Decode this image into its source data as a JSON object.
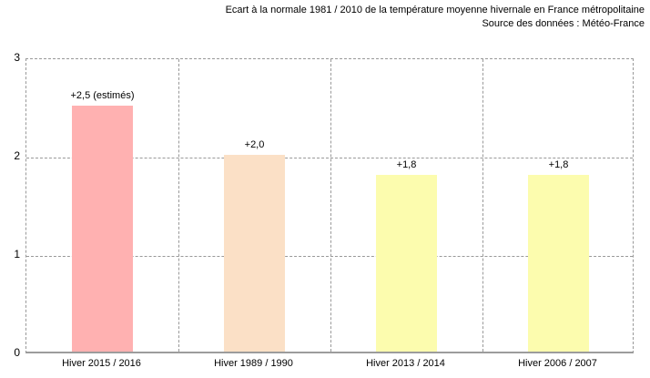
{
  "chart_data": {
    "type": "bar",
    "title": "Ecart à la normale 1981 / 2010 de la température moyenne hivernale en France métropolitaine",
    "subtitle": "Source des données : Météo-France",
    "categories": [
      "Hiver 2015 / 2016",
      "Hiver 1989 / 1990",
      "Hiver 2013 / 2014",
      "Hiver 2006 / 2007"
    ],
    "values": [
      2.5,
      2.0,
      1.8,
      1.8
    ],
    "bar_labels": [
      "+2,5 (estimés)",
      "+2,0",
      "+1,8",
      "+1,8"
    ],
    "bar_colors": [
      "#ffb1b1",
      "#fbe0c6",
      "#fcfcae",
      "#fcfcae"
    ],
    "xlabel": "",
    "ylabel": "",
    "ylim": [
      0,
      3
    ],
    "yticks": [
      0,
      1,
      2,
      3
    ],
    "grid": true,
    "legend": false,
    "colors": {
      "grid": "#999999",
      "axis": "#9c9c9c",
      "text": "#000000",
      "background": "#ffffff"
    }
  }
}
